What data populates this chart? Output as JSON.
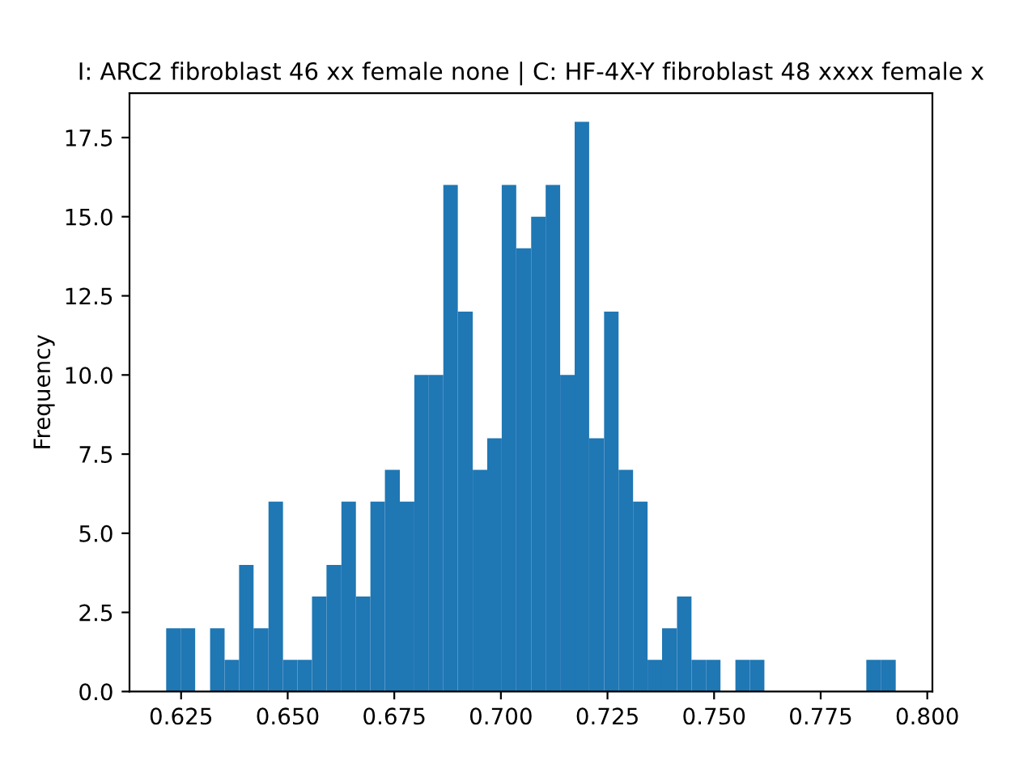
{
  "chart_data": {
    "type": "histogram",
    "title": "I: ARC2 fibroblast 46 xx female none | C: HF-4X-Y fibroblast 48 xxxx female x",
    "ylabel": "Frequency",
    "bins": [
      0.6215,
      0.6249,
      0.6283,
      0.6318,
      0.6352,
      0.6386,
      0.642,
      0.6455,
      0.6489,
      0.6523,
      0.6557,
      0.6591,
      0.6626,
      0.666,
      0.6694,
      0.6728,
      0.6763,
      0.6797,
      0.6831,
      0.6865,
      0.6899,
      0.6934,
      0.6968,
      0.7002,
      0.7036,
      0.7071,
      0.7105,
      0.7139,
      0.7173,
      0.7207,
      0.7242,
      0.7276,
      0.731,
      0.7344,
      0.7378,
      0.7413,
      0.7447,
      0.7481,
      0.7515,
      0.755,
      0.7584,
      0.7618,
      0.7857,
      0.7892,
      0.7926
    ],
    "values": [
      2,
      2,
      0,
      2,
      1,
      4,
      2,
      6,
      1,
      1,
      3,
      4,
      6,
      3,
      6,
      7,
      6,
      10,
      10,
      16,
      12,
      7,
      8,
      16,
      14,
      15,
      16,
      10,
      18,
      8,
      12,
      7,
      6,
      1,
      2,
      3,
      1,
      1,
      0,
      1,
      1,
      0,
      1,
      1
    ],
    "color": "#1f77b4",
    "xlim": [
      0.6129,
      0.8012
    ],
    "xticks": [
      {
        "value": 0.625,
        "label": "0.625"
      },
      {
        "value": 0.65,
        "label": "0.650"
      },
      {
        "value": 0.675,
        "label": "0.675"
      },
      {
        "value": 0.7,
        "label": "0.700"
      },
      {
        "value": 0.725,
        "label": "0.725"
      },
      {
        "value": 0.75,
        "label": "0.750"
      },
      {
        "value": 0.775,
        "label": "0.775"
      },
      {
        "value": 0.8,
        "label": "0.800"
      }
    ],
    "ylim": [
      0,
      18.9
    ],
    "yticks": [
      {
        "value": 0,
        "label": "0.0"
      },
      {
        "value": 2.5,
        "label": "2.5"
      },
      {
        "value": 5,
        "label": "5.0"
      },
      {
        "value": 7.5,
        "label": "7.5"
      },
      {
        "value": 10,
        "label": "10.0"
      },
      {
        "value": 12.5,
        "label": "12.5"
      },
      {
        "value": 15,
        "label": "15.0"
      },
      {
        "value": 17.5,
        "label": "17.5"
      }
    ],
    "grid": false
  }
}
